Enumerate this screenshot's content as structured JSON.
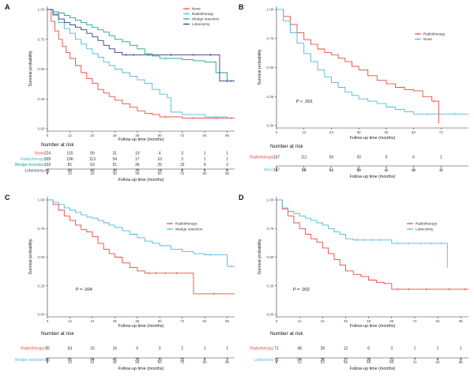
{
  "chart_data": [
    {
      "panel": "A",
      "type": "line",
      "xlabel": "Follow-up time (months)",
      "ylabel": "Survival probability",
      "xlim": [
        0,
        100
      ],
      "ylim": [
        0,
        1
      ],
      "xticks": [
        0,
        12,
        24,
        36,
        48,
        60,
        72,
        84,
        96
      ],
      "yticks": [
        "0.00",
        "0.25",
        "0.50",
        "0.75",
        "1.00"
      ],
      "pvalue": "",
      "series": [
        {
          "name": "None",
          "color": "#e8483e",
          "x": [
            0,
            2,
            4,
            6,
            8,
            10,
            12,
            15,
            18,
            21,
            24,
            27,
            30,
            33,
            36,
            40,
            44,
            48,
            52,
            56,
            60,
            66,
            72,
            84,
            96,
            100
          ],
          "y": [
            1.0,
            0.9,
            0.82,
            0.75,
            0.69,
            0.64,
            0.59,
            0.53,
            0.47,
            0.42,
            0.38,
            0.33,
            0.3,
            0.27,
            0.24,
            0.21,
            0.18,
            0.15,
            0.13,
            0.12,
            0.1,
            0.1,
            0.09,
            0.09,
            0.09,
            0.09
          ]
        },
        {
          "name": "Radiotherapy",
          "color": "#4fb8d8",
          "x": [
            0,
            3,
            6,
            9,
            12,
            15,
            18,
            21,
            24,
            27,
            30,
            33,
            36,
            40,
            44,
            48,
            52,
            56,
            60,
            64,
            66,
            72,
            84,
            96
          ],
          "y": [
            1.0,
            0.95,
            0.89,
            0.84,
            0.8,
            0.75,
            0.71,
            0.67,
            0.63,
            0.6,
            0.56,
            0.53,
            0.5,
            0.47,
            0.44,
            0.41,
            0.38,
            0.33,
            0.29,
            0.26,
            0.14,
            0.12,
            0.1,
            0.08
          ]
        },
        {
          "name": "Wedge resection",
          "color": "#1fa679",
          "x": [
            0,
            3,
            6,
            9,
            12,
            15,
            18,
            21,
            24,
            27,
            30,
            33,
            36,
            40,
            44,
            48,
            52,
            56,
            60,
            66,
            72,
            78,
            84,
            90,
            96,
            100
          ],
          "y": [
            1.0,
            0.98,
            0.97,
            0.95,
            0.93,
            0.91,
            0.89,
            0.87,
            0.85,
            0.83,
            0.81,
            0.78,
            0.75,
            0.73,
            0.7,
            0.67,
            0.63,
            0.61,
            0.59,
            0.59,
            0.58,
            0.57,
            0.56,
            0.47,
            0.4,
            0.4
          ]
        },
        {
          "name": "Lobectomy",
          "color": "#323c85",
          "x": [
            0,
            3,
            6,
            9,
            12,
            15,
            18,
            21,
            24,
            27,
            30,
            33,
            36,
            40,
            44,
            48,
            60,
            72,
            84,
            90,
            92,
            100
          ],
          "y": [
            1.0,
            0.96,
            0.92,
            0.89,
            0.87,
            0.85,
            0.83,
            0.8,
            0.77,
            0.74,
            0.7,
            0.67,
            0.64,
            0.62,
            0.62,
            0.62,
            0.62,
            0.62,
            0.62,
            0.62,
            0.4,
            0.4
          ]
        }
      ],
      "risk_table": {
        "title": "Number at risk",
        "times": [
          0,
          12,
          24,
          36,
          48,
          60,
          72,
          84,
          96
        ],
        "rows": [
          {
            "label": "None",
            "color": "#e8483e",
            "values": [
              "224",
              "115",
              "59",
              "31",
              "10",
              "4",
              "3",
              "1",
              "1"
            ]
          },
          {
            "label": "Radiotherapy",
            "color": "#4fb8d8",
            "values": [
              "309",
              "196",
              "113",
              "54",
              "17",
              "10",
              "3",
              "1",
              "1"
            ]
          },
          {
            "label": "Wedge resection",
            "color": "#1fa679",
            "values": [
              "102",
              "81",
              "63",
              "51",
              "36",
              "25",
              "15",
              "9",
              "3"
            ]
          },
          {
            "label": "Lobectomy",
            "color": "#323c85",
            "values": [
              "81",
              "63",
              "43",
              "30",
              "20",
              "14",
              "8",
              "5",
              "0"
            ]
          }
        ]
      }
    },
    {
      "panel": "B",
      "type": "line",
      "xlabel": "Follow-up time (months)",
      "ylabel": "Survival probability",
      "xlim": [
        0,
        84
      ],
      "ylim": [
        0,
        1
      ],
      "xticks": [
        0,
        12,
        24,
        36,
        48,
        60,
        72
      ],
      "yticks": [
        "0.00",
        "0.25",
        "0.50",
        "0.75",
        "1.00"
      ],
      "pvalue": "P < .001",
      "series": [
        {
          "name": "Radiotherapy",
          "color": "#e8483e",
          "x": [
            0,
            3,
            6,
            9,
            12,
            15,
            18,
            21,
            24,
            27,
            30,
            33,
            36,
            40,
            44,
            48,
            52,
            56,
            60,
            64,
            68,
            70,
            71
          ],
          "y": [
            1.0,
            0.94,
            0.87,
            0.8,
            0.74,
            0.7,
            0.66,
            0.63,
            0.61,
            0.58,
            0.55,
            0.51,
            0.48,
            0.43,
            0.39,
            0.36,
            0.33,
            0.31,
            0.3,
            0.25,
            0.21,
            0.21,
            0.02
          ]
        },
        {
          "name": "None",
          "color": "#4fb8d8",
          "x": [
            0,
            3,
            6,
            9,
            12,
            15,
            18,
            21,
            24,
            27,
            30,
            33,
            36,
            40,
            44,
            48,
            52,
            56,
            60,
            72,
            84
          ],
          "y": [
            1.0,
            0.9,
            0.8,
            0.71,
            0.62,
            0.55,
            0.48,
            0.42,
            0.37,
            0.33,
            0.29,
            0.26,
            0.23,
            0.21,
            0.19,
            0.16,
            0.14,
            0.12,
            0.1,
            0.1,
            0.1
          ]
        }
      ],
      "risk_table": {
        "title": "Number at risk",
        "times": [
          0,
          12,
          24,
          36,
          48,
          60,
          72
        ],
        "rows": [
          {
            "label": "Radiotherapy",
            "color": "#e8483e",
            "values": [
              "167",
              "111",
              "59",
              "30",
              "9",
              "6",
              "1"
            ]
          },
          {
            "label": "None",
            "color": "#4fb8d8",
            "values": [
              "167",
              "98",
              "51",
              "25",
              "7",
              "3",
              "2"
            ]
          }
        ]
      }
    },
    {
      "panel": "C",
      "type": "line",
      "xlabel": "Follow-up time (months)",
      "ylabel": "Survival probability",
      "xlim": [
        0,
        100
      ],
      "ylim": [
        0,
        1
      ],
      "xticks": [
        0,
        12,
        24,
        36,
        48,
        60,
        72,
        84,
        96
      ],
      "yticks": [
        "0.00",
        "0.25",
        "0.50",
        "0.75",
        "1.00"
      ],
      "pvalue": "P = .004",
      "series": [
        {
          "name": "Radiotherapy",
          "color": "#e8483e",
          "x": [
            0,
            3,
            6,
            9,
            12,
            15,
            18,
            21,
            24,
            27,
            30,
            33,
            36,
            40,
            44,
            48,
            52,
            56,
            60,
            66,
            72,
            78,
            100
          ],
          "y": [
            1.0,
            0.96,
            0.91,
            0.86,
            0.82,
            0.78,
            0.74,
            0.72,
            0.68,
            0.62,
            0.57,
            0.53,
            0.5,
            0.45,
            0.41,
            0.38,
            0.36,
            0.36,
            0.36,
            0.36,
            0.36,
            0.18,
            0.18
          ]
        },
        {
          "name": "Wedge resection",
          "color": "#4fb8d8",
          "x": [
            0,
            3,
            6,
            9,
            12,
            15,
            18,
            21,
            24,
            27,
            30,
            33,
            36,
            40,
            44,
            48,
            52,
            56,
            60,
            66,
            72,
            78,
            84,
            90,
            96,
            100
          ],
          "y": [
            1.0,
            0.98,
            0.96,
            0.93,
            0.91,
            0.89,
            0.87,
            0.85,
            0.84,
            0.82,
            0.8,
            0.78,
            0.76,
            0.73,
            0.7,
            0.67,
            0.64,
            0.62,
            0.6,
            0.57,
            0.55,
            0.53,
            0.52,
            0.52,
            0.42,
            0.42
          ]
        }
      ],
      "risk_table": {
        "title": "Number at risk",
        "times": [
          0,
          12,
          24,
          36,
          48,
          60,
          72,
          84,
          96
        ],
        "rows": [
          {
            "label": "Radiotherapy",
            "color": "#e8483e",
            "values": [
              "85",
              "63",
              "33",
              "16",
              "6",
              "3",
              "2",
              "1",
              "1"
            ]
          },
          {
            "label": "Wedge resection",
            "color": "#4fb8d8",
            "values": [
              "85",
              "65",
              "54",
              "42",
              "29",
              "20",
              "13",
              "8",
              "3"
            ]
          }
        ]
      }
    },
    {
      "panel": "D",
      "type": "line",
      "xlabel": "Follow-up time (months)",
      "ylabel": "Survival probability",
      "xlim": [
        0,
        100
      ],
      "ylim": [
        0,
        1
      ],
      "xticks": [
        0,
        12,
        24,
        36,
        48,
        60,
        72,
        84,
        96
      ],
      "yticks": [
        "0.00",
        "0.25",
        "0.50",
        "0.75",
        "1.00"
      ],
      "pvalue": "P = .002",
      "series": [
        {
          "name": "Radiotherapy",
          "color": "#e8483e",
          "x": [
            0,
            3,
            6,
            9,
            12,
            15,
            18,
            21,
            24,
            27,
            30,
            33,
            36,
            40,
            44,
            48,
            52,
            56,
            60,
            66,
            72,
            84,
            96,
            100
          ],
          "y": [
            1.0,
            0.92,
            0.86,
            0.8,
            0.75,
            0.7,
            0.66,
            0.63,
            0.58,
            0.53,
            0.48,
            0.43,
            0.38,
            0.35,
            0.33,
            0.3,
            0.28,
            0.27,
            0.22,
            0.22,
            0.22,
            0.22,
            0.22,
            0.22
          ]
        },
        {
          "name": "Lobectomy",
          "color": "#4fb8d8",
          "x": [
            0,
            3,
            6,
            9,
            12,
            15,
            18,
            21,
            24,
            27,
            30,
            33,
            36,
            40,
            44,
            48,
            52,
            56,
            60,
            66,
            72,
            78,
            84,
            88,
            89
          ],
          "y": [
            1.0,
            0.93,
            0.9,
            0.88,
            0.86,
            0.84,
            0.82,
            0.8,
            0.78,
            0.75,
            0.72,
            0.7,
            0.66,
            0.65,
            0.65,
            0.65,
            0.65,
            0.65,
            0.62,
            0.62,
            0.62,
            0.62,
            0.62,
            0.62,
            0.41
          ]
        }
      ],
      "risk_table": {
        "title": "Number at risk",
        "times": [
          0,
          12,
          24,
          36,
          48,
          60,
          72,
          84,
          96
        ],
        "rows": [
          {
            "label": "Radiotherapy",
            "color": "#e8483e",
            "values": [
              "71",
              "48",
              "28",
              "12",
              "6",
              "3",
              "1",
              "1",
              "1"
            ]
          },
          {
            "label": "Lobectomy",
            "color": "#4fb8d8",
            "values": [
              "71",
              "54",
              "38",
              "27",
              "18",
              "13",
              "7",
              "4",
              "0"
            ]
          }
        ]
      }
    }
  ]
}
